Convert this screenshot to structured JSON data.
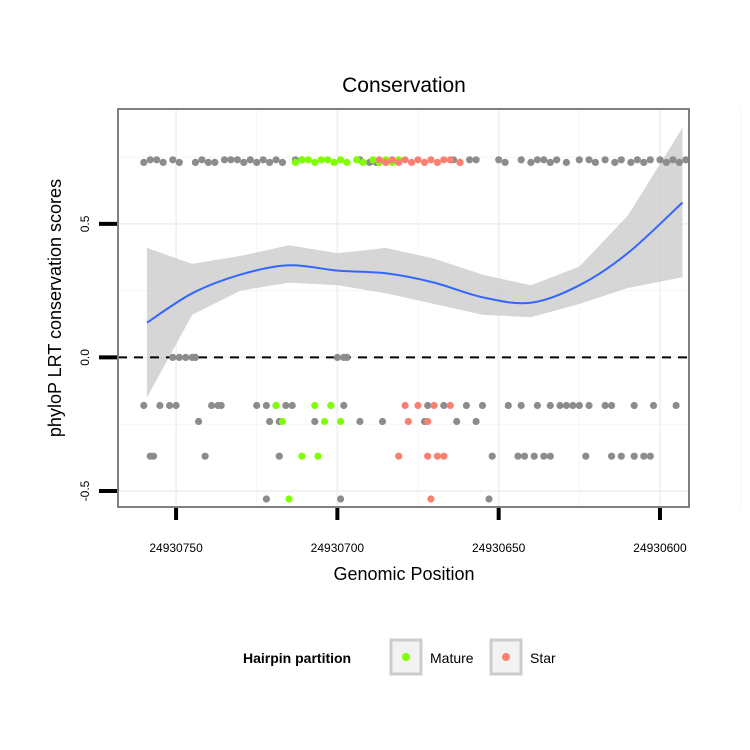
{
  "chart_data": {
    "type": "scatter",
    "title": "Conservation",
    "xlabel": "Genomic Position",
    "ylabel": "phyloP LRT conservation scores",
    "x_reversed": true,
    "xlim": [
      24930768,
      24930591
    ],
    "ylim": [
      -0.56,
      0.93
    ],
    "x_ticks": [
      24930750,
      24930700,
      24930650,
      24930600
    ],
    "x_tick_labels": [
      "24930750",
      "24930700",
      "24930650",
      "24930600"
    ],
    "y_ticks": [
      -0.5,
      0.0,
      0.5
    ],
    "y_tick_labels": [
      "-0.5",
      "0.0",
      "0.5"
    ],
    "reference_line": {
      "y": 0,
      "style": "dashed"
    },
    "smooth": {
      "method": "loess",
      "x": [
        24930759,
        24930745,
        24930730,
        24930715,
        24930700,
        24930685,
        24930670,
        24930655,
        24930640,
        24930625,
        24930610,
        24930593
      ],
      "y": [
        0.13,
        0.24,
        0.31,
        0.345,
        0.325,
        0.315,
        0.28,
        0.225,
        0.205,
        0.27,
        0.39,
        0.58
      ],
      "ci_lower": [
        -0.15,
        0.16,
        0.25,
        0.28,
        0.27,
        0.24,
        0.2,
        0.16,
        0.15,
        0.2,
        0.26,
        0.3
      ],
      "ci_upper": [
        0.41,
        0.35,
        0.38,
        0.42,
        0.39,
        0.41,
        0.37,
        0.31,
        0.27,
        0.34,
        0.53,
        0.86
      ]
    },
    "legend": {
      "title": "Hairpin partition",
      "position": "bottom",
      "entries": [
        "Mature",
        "Star"
      ]
    },
    "colors": {
      "Other": "#8c8c8c",
      "Mature": "#7fff00",
      "Star": "#fa8072",
      "smooth": "#3366ff",
      "ci": "#cccccc"
    },
    "series": [
      {
        "name": "Other",
        "points": [
          [
            24930760,
            0.73
          ],
          [
            24930758,
            0.74
          ],
          [
            24930756,
            0.74
          ],
          [
            24930754,
            0.73
          ],
          [
            24930751,
            0.74
          ],
          [
            24930749,
            0.73
          ],
          [
            24930744,
            0.73
          ],
          [
            24930742,
            0.74
          ],
          [
            24930740,
            0.73
          ],
          [
            24930738,
            0.73
          ],
          [
            24930735,
            0.74
          ],
          [
            24930733,
            0.74
          ],
          [
            24930731,
            0.74
          ],
          [
            24930729,
            0.73
          ],
          [
            24930727,
            0.74
          ],
          [
            24930725,
            0.73
          ],
          [
            24930723,
            0.74
          ],
          [
            24930721,
            0.73
          ],
          [
            24930719,
            0.74
          ],
          [
            24930717,
            0.73
          ],
          [
            24930713,
            0.74
          ],
          [
            24930711,
            0.74
          ],
          [
            24930693,
            0.74
          ],
          [
            24930690,
            0.73
          ],
          [
            24930688,
            0.73
          ],
          [
            24930664,
            0.74
          ],
          [
            24930662,
            0.73
          ],
          [
            24930659,
            0.74
          ],
          [
            24930657,
            0.74
          ],
          [
            24930650,
            0.74
          ],
          [
            24930648,
            0.73
          ],
          [
            24930643,
            0.74
          ],
          [
            24930640,
            0.73
          ],
          [
            24930638,
            0.74
          ],
          [
            24930636,
            0.74
          ],
          [
            24930634,
            0.73
          ],
          [
            24930632,
            0.74
          ],
          [
            24930629,
            0.73
          ],
          [
            24930625,
            0.74
          ],
          [
            24930622,
            0.74
          ],
          [
            24930620,
            0.73
          ],
          [
            24930617,
            0.74
          ],
          [
            24930614,
            0.73
          ],
          [
            24930612,
            0.74
          ],
          [
            24930609,
            0.73
          ],
          [
            24930607,
            0.74
          ],
          [
            24930605,
            0.73
          ],
          [
            24930603,
            0.74
          ],
          [
            24930600,
            0.74
          ],
          [
            24930598,
            0.73
          ],
          [
            24930596,
            0.74
          ],
          [
            24930594,
            0.73
          ],
          [
            24930592,
            0.74
          ],
          [
            24930751,
            0.0
          ],
          [
            24930749,
            0.0
          ],
          [
            24930747,
            0.0
          ],
          [
            24930745,
            0.0
          ],
          [
            24930744,
            0.0
          ],
          [
            24930700,
            0.0
          ],
          [
            24930698,
            0.0
          ],
          [
            24930697,
            0.0
          ],
          [
            24930760,
            -0.18
          ],
          [
            24930755,
            -0.18
          ],
          [
            24930752,
            -0.18
          ],
          [
            24930750,
            -0.18
          ],
          [
            24930739,
            -0.18
          ],
          [
            24930737,
            -0.18
          ],
          [
            24930736,
            -0.18
          ],
          [
            24930725,
            -0.18
          ],
          [
            24930722,
            -0.18
          ],
          [
            24930719,
            -0.18
          ],
          [
            24930716,
            -0.18
          ],
          [
            24930714,
            -0.18
          ],
          [
            24930702,
            -0.18
          ],
          [
            24930698,
            -0.18
          ],
          [
            24930672,
            -0.18
          ],
          [
            24930667,
            -0.18
          ],
          [
            24930660,
            -0.18
          ],
          [
            24930655,
            -0.18
          ],
          [
            24930647,
            -0.18
          ],
          [
            24930643,
            -0.18
          ],
          [
            24930638,
            -0.18
          ],
          [
            24930634,
            -0.18
          ],
          [
            24930631,
            -0.18
          ],
          [
            24930629,
            -0.18
          ],
          [
            24930627,
            -0.18
          ],
          [
            24930625,
            -0.18
          ],
          [
            24930622,
            -0.18
          ],
          [
            24930617,
            -0.18
          ],
          [
            24930615,
            -0.18
          ],
          [
            24930608,
            -0.18
          ],
          [
            24930602,
            -0.18
          ],
          [
            24930595,
            -0.18
          ],
          [
            24930743,
            -0.24
          ],
          [
            24930721,
            -0.24
          ],
          [
            24930718,
            -0.24
          ],
          [
            24930707,
            -0.24
          ],
          [
            24930693,
            -0.24
          ],
          [
            24930686,
            -0.24
          ],
          [
            24930673,
            -0.24
          ],
          [
            24930663,
            -0.24
          ],
          [
            24930657,
            -0.24
          ],
          [
            24930758,
            -0.37
          ],
          [
            24930757,
            -0.37
          ],
          [
            24930741,
            -0.37
          ],
          [
            24930718,
            -0.37
          ],
          [
            24930652,
            -0.37
          ],
          [
            24930644,
            -0.37
          ],
          [
            24930642,
            -0.37
          ],
          [
            24930639,
            -0.37
          ],
          [
            24930636,
            -0.37
          ],
          [
            24930634,
            -0.37
          ],
          [
            24930623,
            -0.37
          ],
          [
            24930615,
            -0.37
          ],
          [
            24930612,
            -0.37
          ],
          [
            24930608,
            -0.37
          ],
          [
            24930605,
            -0.37
          ],
          [
            24930603,
            -0.37
          ],
          [
            24930722,
            -0.53
          ],
          [
            24930699,
            -0.53
          ],
          [
            24930653,
            -0.53
          ]
        ]
      },
      {
        "name": "Mature",
        "points": [
          [
            24930713,
            0.73
          ],
          [
            24930711,
            0.74
          ],
          [
            24930709,
            0.74
          ],
          [
            24930707,
            0.73
          ],
          [
            24930705,
            0.74
          ],
          [
            24930703,
            0.74
          ],
          [
            24930701,
            0.73
          ],
          [
            24930699,
            0.74
          ],
          [
            24930697,
            0.73
          ],
          [
            24930694,
            0.74
          ],
          [
            24930692,
            0.73
          ],
          [
            24930689,
            0.74
          ],
          [
            24930687,
            0.73
          ],
          [
            24930685,
            0.74
          ],
          [
            24930683,
            0.73
          ],
          [
            24930681,
            0.74
          ],
          [
            24930719,
            -0.18
          ],
          [
            24930707,
            -0.18
          ],
          [
            24930702,
            -0.18
          ],
          [
            24930717,
            -0.24
          ],
          [
            24930704,
            -0.24
          ],
          [
            24930699,
            -0.24
          ],
          [
            24930711,
            -0.37
          ],
          [
            24930706,
            -0.37
          ],
          [
            24930715,
            -0.53
          ]
        ]
      },
      {
        "name": "Star",
        "points": [
          [
            24930687,
            0.74
          ],
          [
            24930685,
            0.73
          ],
          [
            24930683,
            0.74
          ],
          [
            24930681,
            0.73
          ],
          [
            24930679,
            0.74
          ],
          [
            24930677,
            0.73
          ],
          [
            24930675,
            0.74
          ],
          [
            24930673,
            0.73
          ],
          [
            24930671,
            0.74
          ],
          [
            24930669,
            0.73
          ],
          [
            24930667,
            0.74
          ],
          [
            24930665,
            0.74
          ],
          [
            24930662,
            0.73
          ],
          [
            24930679,
            -0.18
          ],
          [
            24930675,
            -0.18
          ],
          [
            24930670,
            -0.18
          ],
          [
            24930665,
            -0.18
          ],
          [
            24930678,
            -0.24
          ],
          [
            24930672,
            -0.24
          ],
          [
            24930681,
            -0.37
          ],
          [
            24930672,
            -0.37
          ],
          [
            24930669,
            -0.37
          ],
          [
            24930667,
            -0.37
          ],
          [
            24930671,
            -0.53
          ]
        ]
      }
    ]
  }
}
